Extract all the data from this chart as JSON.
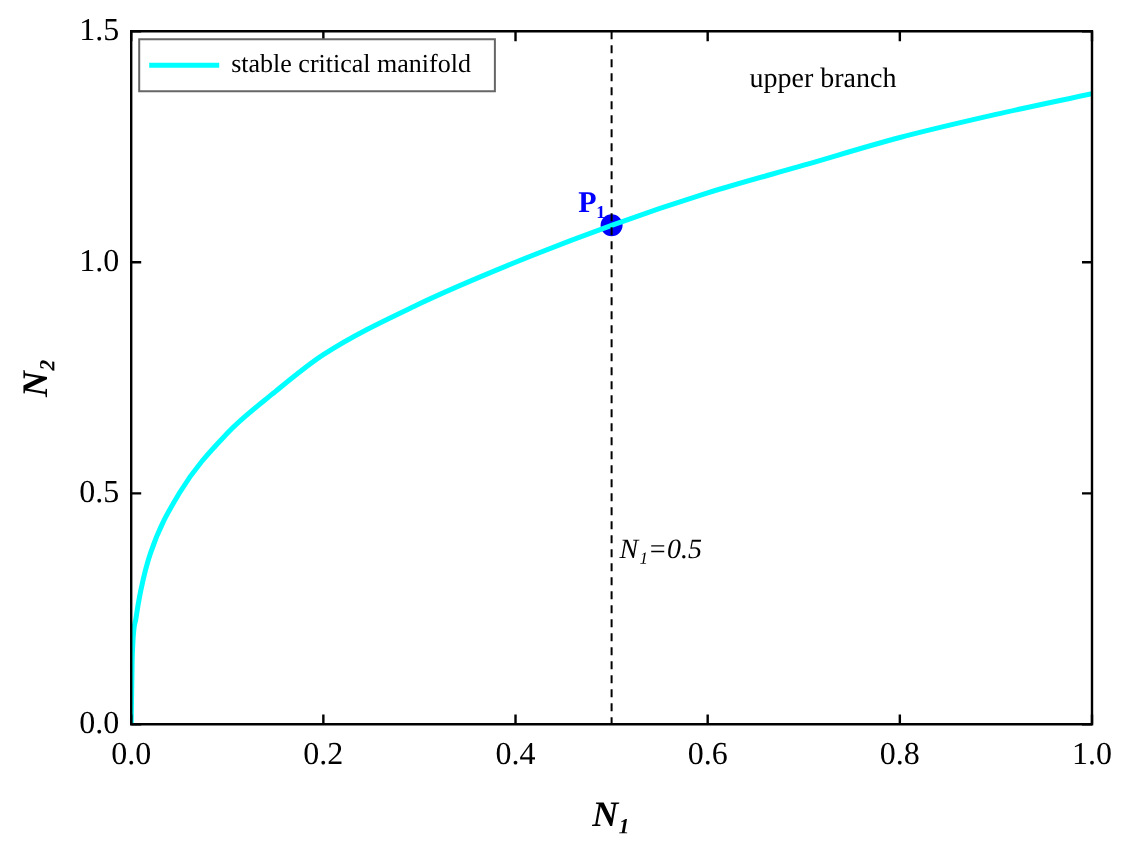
{
  "chart_data": {
    "type": "line",
    "xlabel": "N₁",
    "ylabel": "N₂",
    "xlim": [
      0,
      1
    ],
    "ylim": [
      0,
      1.5
    ],
    "xticks": [
      {
        "value": 0,
        "label": "0.0"
      },
      {
        "value": 0.2,
        "label": "0.2"
      },
      {
        "value": 0.4,
        "label": "0.4"
      },
      {
        "value": 0.6,
        "label": "0.6"
      },
      {
        "value": 0.8,
        "label": "0.8"
      },
      {
        "value": 1,
        "label": "1.0"
      }
    ],
    "yticks": [
      {
        "value": 0,
        "label": "0.0"
      },
      {
        "value": 0.5,
        "label": "0.5"
      },
      {
        "value": 1,
        "label": "1.0"
      },
      {
        "value": 1.5,
        "label": "1.5"
      }
    ],
    "series": [
      {
        "name": "stable critical manifold",
        "color": "#00ffff",
        "x": [
          0,
          0.001,
          0.005,
          0.01,
          0.02,
          0.05,
          0.1,
          0.15,
          0.2,
          0.3,
          0.4,
          0.5,
          0.6,
          0.7,
          0.8,
          0.9,
          1.0
        ],
        "values": [
          0,
          0.14,
          0.23,
          0.29,
          0.37,
          0.5,
          0.63,
          0.72,
          0.8,
          0.91,
          1.0,
          1.08,
          1.15,
          1.21,
          1.27,
          1.32,
          1.365
        ],
        "marker": "none"
      },
      {
        "type": "scatter",
        "color": "#0000ff",
        "x": [
          0.5
        ],
        "values": [
          1.08
        ],
        "marker": "circle"
      }
    ],
    "ref_lines": [
      {
        "axis": "x",
        "value": 0.5,
        "label": "N₁=0.5",
        "line_style": "dashed",
        "color": "#000000"
      }
    ],
    "annotations": [
      {
        "text": "P₁",
        "x": 0.5,
        "y": 1.08
      },
      "upper branch"
    ],
    "legend": "top left",
    "line_style": "solid",
    "grid": false
  }
}
